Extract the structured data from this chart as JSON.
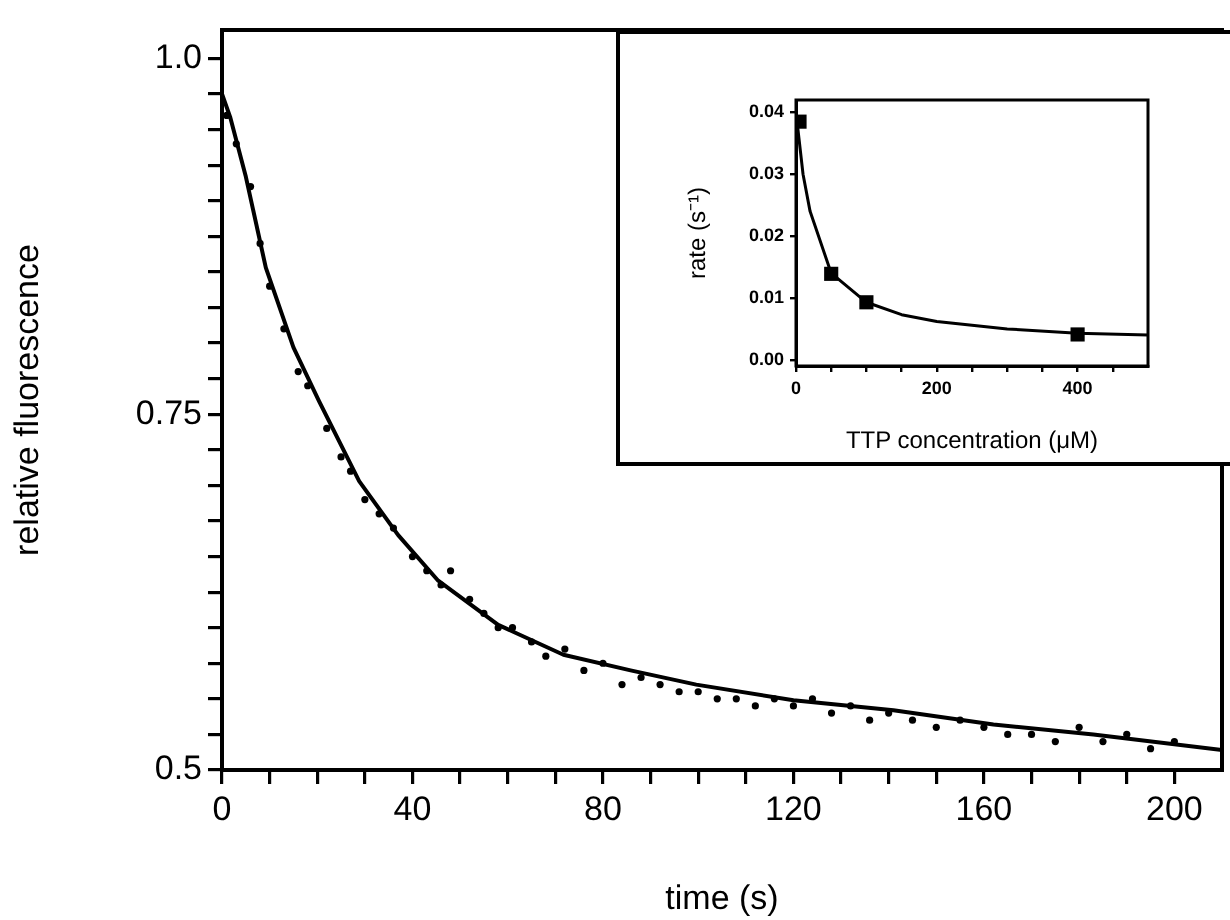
{
  "chart_data": [
    {
      "type": "scatter",
      "xlabel": "time (s)",
      "ylabel": "relative fluorescence",
      "xlim": [
        0,
        210
      ],
      "ylim": [
        0.5,
        1.02
      ],
      "xticks": [
        0,
        {
          "value": 10,
          "label": null
        },
        {
          "value": 20,
          "label": null
        },
        {
          "value": 30,
          "label": null
        },
        40,
        {
          "value": 50,
          "label": null
        },
        {
          "value": 60,
          "label": null
        },
        {
          "value": 70,
          "label": null
        },
        80,
        {
          "value": 90,
          "label": null
        },
        {
          "value": 100,
          "label": null
        },
        {
          "value": 110,
          "label": null
        },
        120,
        {
          "value": 130,
          "label": null
        },
        {
          "value": 140,
          "label": null
        },
        {
          "value": 150,
          "label": null
        },
        160,
        {
          "value": 170,
          "label": null
        },
        {
          "value": 180,
          "label": null
        },
        {
          "value": 190,
          "label": null
        },
        200
      ],
      "yticks": [
        0.5,
        {
          "value": 0.525,
          "label": null
        },
        {
          "value": 0.55,
          "label": null
        },
        {
          "value": 0.575,
          "label": null
        },
        {
          "value": 0.6,
          "label": null
        },
        {
          "value": 0.625,
          "label": null
        },
        {
          "value": 0.65,
          "label": null
        },
        {
          "value": 0.675,
          "label": null
        },
        {
          "value": 0.7,
          "label": null
        },
        {
          "value": 0.725,
          "label": null
        },
        0.75,
        {
          "value": 0.775,
          "label": null
        },
        {
          "value": 0.8,
          "label": null
        },
        {
          "value": 0.825,
          "label": null
        },
        {
          "value": 0.85,
          "label": null
        },
        {
          "value": 0.875,
          "label": null
        },
        {
          "value": 0.9,
          "label": null
        },
        {
          "value": 0.925,
          "label": null
        },
        {
          "value": 0.95,
          "label": null
        },
        {
          "value": 0.975,
          "label": null
        },
        {
          "value": 1.0,
          "label": "1.0"
        }
      ],
      "grid": false,
      "legend": false,
      "series": [
        {
          "color": "#000000",
          "marker": "circle",
          "x": [
            1,
            3,
            6,
            8,
            10,
            13,
            16,
            18,
            22,
            25,
            27,
            30,
            33,
            36,
            40,
            43,
            46,
            48,
            52,
            55,
            58,
            61,
            65,
            68,
            72,
            76,
            80,
            84,
            88,
            92,
            96,
            100,
            104,
            108,
            112,
            116,
            120,
            124,
            128,
            132,
            136,
            140,
            145,
            150,
            155,
            160,
            165,
            170,
            175,
            180,
            185,
            190,
            195,
            200
          ],
          "values": [
            0.96,
            0.94,
            0.91,
            0.87,
            0.84,
            0.81,
            0.78,
            0.77,
            0.74,
            0.72,
            0.71,
            0.69,
            0.68,
            0.67,
            0.65,
            0.64,
            0.63,
            0.64,
            0.62,
            0.61,
            0.6,
            0.6,
            0.59,
            0.58,
            0.585,
            0.57,
            0.575,
            0.56,
            0.565,
            0.56,
            0.555,
            0.555,
            0.55,
            0.55,
            0.545,
            0.55,
            0.545,
            0.55,
            0.54,
            0.545,
            0.535,
            0.54,
            0.535,
            0.53,
            0.535,
            0.53,
            0.525,
            0.525,
            0.52,
            0.53,
            0.52,
            0.525,
            0.515,
            0.52
          ]
        },
        {
          "type": "line",
          "color": "#000000",
          "marker": "none",
          "line_style": "solid",
          "x": [
            0,
            1.7,
            5,
            9.2,
            15,
            20.4,
            28.8,
            37,
            45.4,
            58,
            71.7,
            85.8,
            99.6,
            120,
            141,
            162,
            183,
            210
          ],
          "values": [
            0.975,
            0.959,
            0.917,
            0.853,
            0.797,
            0.759,
            0.703,
            0.665,
            0.633,
            0.602,
            0.581,
            0.57,
            0.56,
            0.549,
            0.542,
            0.532,
            0.525,
            0.514
          ]
        }
      ]
    },
    {
      "type": "scatter",
      "xlabel": "TTP concentration (μM)",
      "ylabel": "rate (s⁻¹)",
      "xlim": [
        0,
        500
      ],
      "ylim": [
        -0.001,
        0.042
      ],
      "xticks": [
        0,
        {
          "value": 50,
          "label": null
        },
        {
          "value": 100,
          "label": null
        },
        {
          "value": 150,
          "label": null
        },
        200,
        {
          "value": 250,
          "label": null
        },
        {
          "value": 300,
          "label": null
        },
        {
          "value": 350,
          "label": null
        },
        400,
        {
          "value": 450,
          "label": null
        }
      ],
      "yticks": [
        {
          "value": 0,
          "label": "0.00"
        },
        {
          "value": 0.01,
          "label": "0.01"
        },
        {
          "value": 0.02,
          "label": "0.02"
        },
        {
          "value": 0.03,
          "label": "0.03"
        },
        {
          "value": 0.04,
          "label": "0.04"
        }
      ],
      "grid": false,
      "legend": false,
      "series": [
        {
          "color": "#000000",
          "marker": "square",
          "x": [
            5,
            50,
            100,
            400
          ],
          "values": [
            0.0385,
            0.0139,
            0.0093,
            0.0041
          ]
        },
        {
          "type": "line",
          "color": "#000000",
          "marker": "none",
          "line_style": "solid",
          "x": [
            0,
            10,
            20,
            50,
            100,
            150,
            200,
            300,
            400,
            500
          ],
          "values": [
            0.04,
            0.03,
            0.024,
            0.014,
            0.0093,
            0.0073,
            0.0062,
            0.005,
            0.0043,
            0.004
          ]
        }
      ]
    }
  ]
}
